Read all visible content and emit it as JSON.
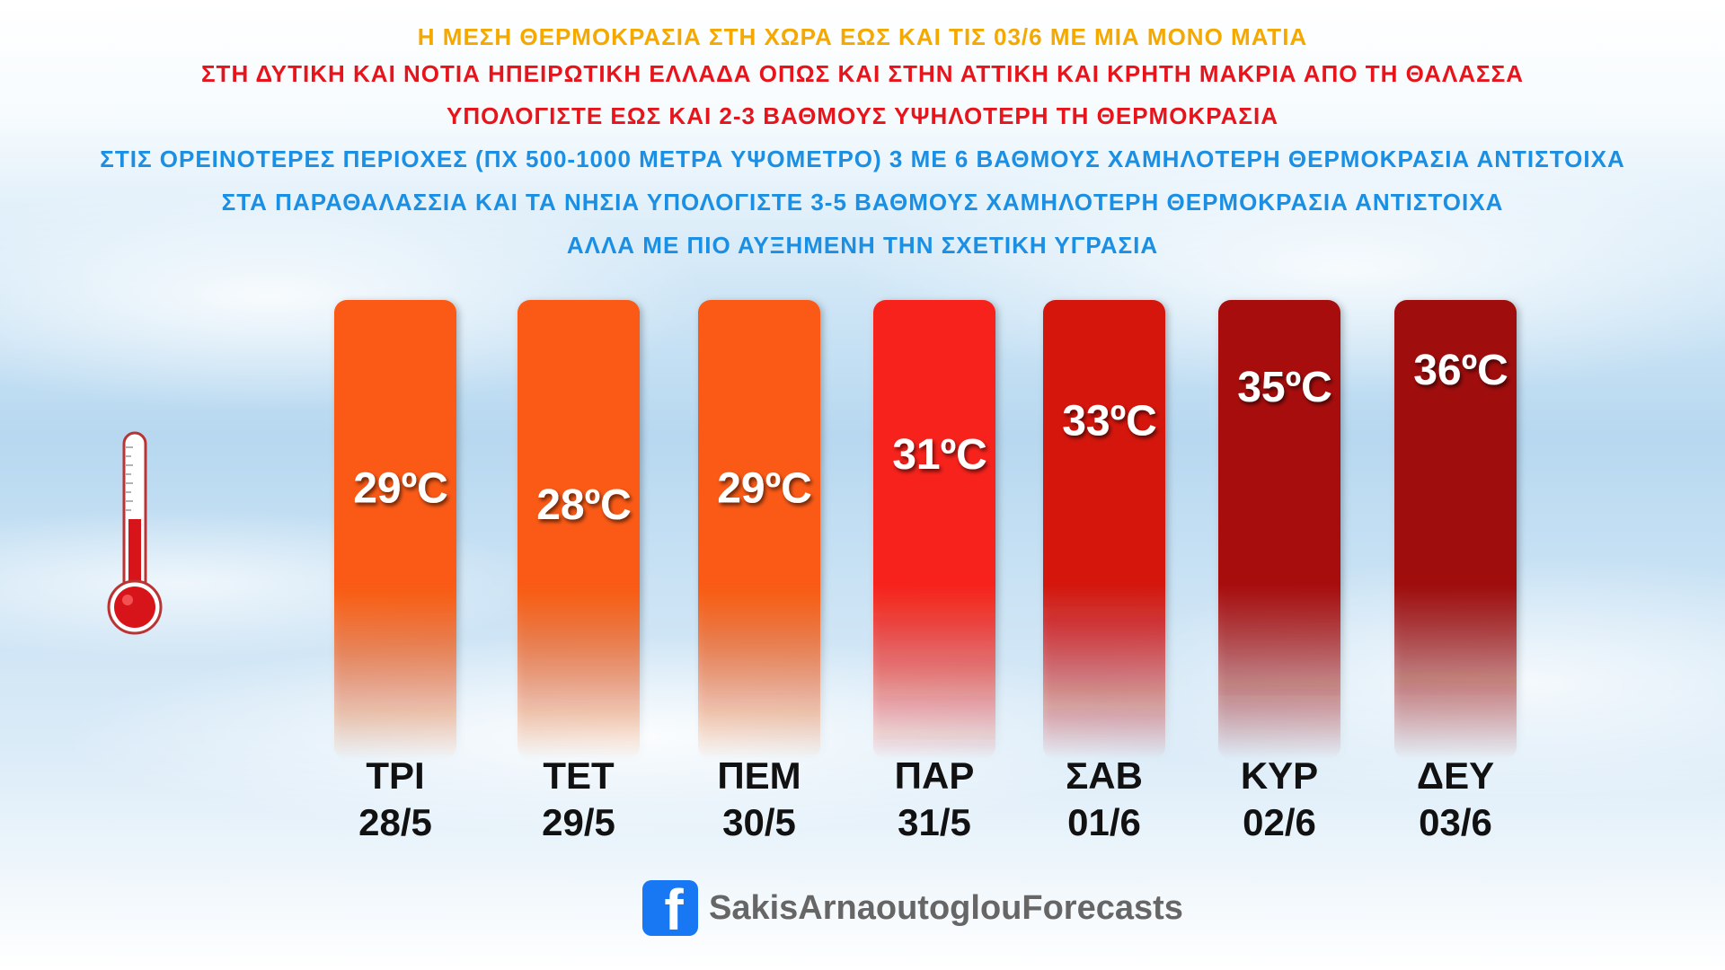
{
  "header": {
    "line1": "Η ΜΕΣΗ ΘΕΡΜΟΚΡΑΣΙΑ ΣΤΗ ΧΩΡΑ ΕΩΣ ΚΑΙ ΤΙΣ 03/6 ΜΕ ΜΙΑ ΜΟΝΟ ΜΑΤΙΑ",
    "line2": "ΣΤΗ ΔΥΤΙΚΗ ΚΑΙ ΝΟΤΙΑ ΗΠΕΙΡΩΤΙΚΗ ΕΛΛΑΔΑ ΟΠΩΣ ΚΑΙ ΣΤΗΝ ΑΤΤΙΚΗ ΚΑΙ ΚΡΗΤΗ ΜΑΚΡΙΑ ΑΠΟ ΤΗ ΘΑΛΑΣΣΑ",
    "line3": "ΥΠΟΛΟΓΙΣΤΕ ΕΩΣ ΚΑΙ 2-3 ΒΑΘΜΟΥΣ ΥΨΗΛΟΤΕΡΗ ΤΗ ΘΕΡΜΟΚΡΑΣΙΑ",
    "line4": "ΣΤΙΣ ΟΡΕΙΝΟΤΕΡΕΣ ΠΕΡΙΟΧΕΣ (ΠΧ 500-1000 ΜΕΤΡΑ ΥΨΟΜΕΤΡΟ) 3 ΜΕ 6 ΒΑΘΜΟΥΣ ΧΑΜΗΛΟΤΕΡΗ ΘΕΡΜΟΚΡΑΣΙΑ ΑΝΤΙΣΤΟΙΧΑ",
    "line5": "ΣΤΑ ΠΑΡΑΘΑΛΑΣΣΙΑ ΚΑΙ ΤΑ ΝΗΣΙΑ ΥΠΟΛΟΓΙΣΤΕ 3-5 ΒΑΘΜΟΥΣ ΧΑΜΗΛΟΤΕΡΗ ΘΕΡΜΟΚΡΑΣΙΑ ΑΝΤΙΣΤΟΙΧΑ",
    "line6": "ΑΛΛΑ ΜΕ ΠΙΟ ΑΥΞΗΜΕΝΗ ΤΗΝ ΣΧΕΤΙΚΗ ΥΓΡΑΣΙΑ"
  },
  "colors": {
    "title": "#f5a800",
    "warning": "#e8141b",
    "info": "#1a8fe3",
    "footer_text": "#666666",
    "facebook": "#1877f2"
  },
  "icons": {
    "thermometer": "thermometer-icon",
    "facebook": "facebook-icon"
  },
  "chart_data": {
    "type": "bar",
    "categories": [
      "ΤΡΙ 28/5",
      "ΤΕΤ 29/5",
      "ΠΕΜ 30/5",
      "ΠΑΡ 31/5",
      "ΣΑΒ 01/6",
      "ΚΥΡ 02/6",
      "ΔΕΥ 03/6"
    ],
    "days": [
      {
        "day": "ΤΡΙ",
        "date": "28/5",
        "value": 29,
        "label": "29ºC",
        "color": "#fa5a12"
      },
      {
        "day": "ΤΕΤ",
        "date": "29/5",
        "value": 28,
        "label": "28ºC",
        "color": "#fa5a12"
      },
      {
        "day": "ΠΕΜ",
        "date": "30/5",
        "value": 29,
        "label": "29ºC",
        "color": "#fa5a12"
      },
      {
        "day": "ΠΑΡ",
        "date": "31/5",
        "value": 31,
        "label": "31ºC",
        "color": "#f7231a"
      },
      {
        "day": "ΣΑΒ",
        "date": "01/6",
        "value": 33,
        "label": "33ºC",
        "color": "#d4140f"
      },
      {
        "day": "ΚΥΡ",
        "date": "02/6",
        "value": 35,
        "label": "35ºC",
        "color": "#a8100e"
      },
      {
        "day": "ΔΕΥ",
        "date": "03/6",
        "value": 36,
        "label": "36ºC",
        "color": "#a00f0d"
      }
    ],
    "values": [
      29,
      28,
      29,
      31,
      33,
      35,
      36
    ],
    "unit": "ºC"
  },
  "footer": {
    "handle": "SakisArnaoutoglouForecasts"
  }
}
